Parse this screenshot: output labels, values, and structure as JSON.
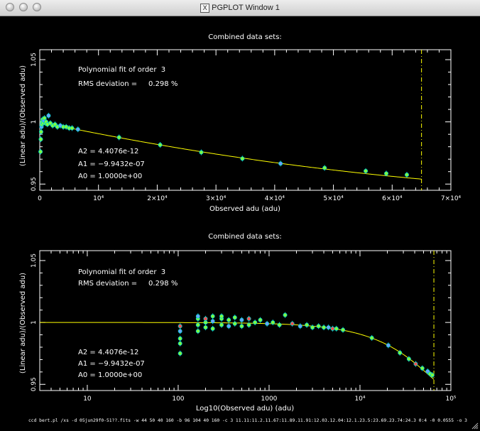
{
  "window": {
    "title": "PGPLOT Window 1",
    "title_icon": "X",
    "command_line": "ccd bert.pl /xs -d 05jun29f0-51??.fits -w 44 50 40 160 -b 96 104 40 160 -c 3 11.11:11.2.11.67:11.89.11.91:12.03.12.04:12.1.23.5:23.69.23.74:24.3 0:4 -0 0.0555 -o 3"
  },
  "colors": {
    "background": "#000000",
    "axes": "#ffffff",
    "fit_line": "#ffff00",
    "fill_points": "#7fff3f",
    "outline_points": "#00cccc",
    "blue_points": "#6f9fff",
    "red_points": "#ff5050",
    "limit_line": "#ffff00"
  },
  "chart_data": [
    {
      "type": "scatter",
      "title": "Combined data sets:",
      "xlabel": "Observed adu (adu)",
      "ylabel": "(Linear adu)/(Observed adu)",
      "xscale": "linear",
      "xlim": [
        0,
        70000
      ],
      "ylim": [
        0.945,
        1.058
      ],
      "x_ticks": [
        0,
        10000,
        20000,
        30000,
        40000,
        50000,
        60000,
        70000
      ],
      "x_tick_labels": [
        "0",
        "10⁴",
        "2×10⁴",
        "3×10⁴",
        "4×10⁴",
        "5×10⁴",
        "6×10⁴",
        "7×10⁴"
      ],
      "y_ticks": [
        0.95,
        1.0,
        1.05
      ],
      "y_tick_labels": [
        "0.95",
        "1",
        "1.05"
      ],
      "annotations": [
        "Polynomial fit of order  3",
        "RMS deviation =     0.298 %",
        "A2 = 4.4076e-12",
        "A1 = −9.9432e-07",
        "A0 = 1.0000e+00"
      ],
      "fit_coefficients": {
        "A0": 1.0,
        "A1": -9.9432e-07,
        "A2": 4.4076e-12
      },
      "limit_x": 65000,
      "points": [
        {
          "x": 130,
          "y": 0.976
        },
        {
          "x": 180,
          "y": 0.986
        },
        {
          "x": 230,
          "y": 0.992
        },
        {
          "x": 300,
          "y": 0.996
        },
        {
          "x": 360,
          "y": 0.998
        },
        {
          "x": 420,
          "y": 1.0
        },
        {
          "x": 500,
          "y": 1.002
        },
        {
          "x": 600,
          "y": 0.999
        },
        {
          "x": 700,
          "y": 1.001
        },
        {
          "x": 800,
          "y": 1.003
        },
        {
          "x": 950,
          "y": 0.999
        },
        {
          "x": 1100,
          "y": 1.0
        },
        {
          "x": 1300,
          "y": 0.998
        },
        {
          "x": 1500,
          "y": 1.005
        },
        {
          "x": 1800,
          "y": 0.999
        },
        {
          "x": 2200,
          "y": 0.997
        },
        {
          "x": 2600,
          "y": 0.998
        },
        {
          "x": 3000,
          "y": 0.996
        },
        {
          "x": 3500,
          "y": 0.997
        },
        {
          "x": 4000,
          "y": 0.996
        },
        {
          "x": 4500,
          "y": 0.996
        },
        {
          "x": 5000,
          "y": 0.995
        },
        {
          "x": 5500,
          "y": 0.995
        },
        {
          "x": 6500,
          "y": 0.994
        },
        {
          "x": 13500,
          "y": 0.9875
        },
        {
          "x": 20500,
          "y": 0.9815
        },
        {
          "x": 27500,
          "y": 0.9755
        },
        {
          "x": 34500,
          "y": 0.9705
        },
        {
          "x": 41000,
          "y": 0.9665
        },
        {
          "x": 48500,
          "y": 0.963
        },
        {
          "x": 55500,
          "y": 0.9605
        },
        {
          "x": 59000,
          "y": 0.9585
        },
        {
          "x": 62500,
          "y": 0.9575
        }
      ]
    },
    {
      "type": "scatter",
      "title": "Combined data sets:",
      "xlabel": "Log10(Observed adu) (adu)",
      "ylabel": "(Linear adu)/(Observed adu)",
      "xscale": "log",
      "xlim": [
        3,
        100000
      ],
      "ylim": [
        0.945,
        1.058
      ],
      "x_ticks": [
        10,
        100,
        1000,
        10000,
        100000
      ],
      "x_tick_labels": [
        "10",
        "100",
        "1000",
        "10⁴",
        "10⁵"
      ],
      "y_ticks": [
        0.95,
        1.0,
        1.05
      ],
      "y_tick_labels": [
        "0.95",
        "1",
        "1.05"
      ],
      "annotations": [
        "Polynomial fit of order  3",
        "RMS deviation =     0.298 %",
        "A2 = 4.4076e-12",
        "A1 = −9.9432e-07",
        "A0 = 1.0000e+00"
      ],
      "fit_coefficients": {
        "A0": 1.0,
        "A1": -9.9432e-07,
        "A2": 4.4076e-12
      },
      "limit_x": 65000,
      "points": [
        {
          "x": 105,
          "y": 0.975
        },
        {
          "x": 105,
          "y": 0.983
        },
        {
          "x": 105,
          "y": 0.987
        },
        {
          "x": 105,
          "y": 0.993
        },
        {
          "x": 105,
          "y": 0.997
        },
        {
          "x": 165,
          "y": 0.993
        },
        {
          "x": 165,
          "y": 0.998
        },
        {
          "x": 165,
          "y": 1.003
        },
        {
          "x": 165,
          "y": 1.005
        },
        {
          "x": 200,
          "y": 0.996
        },
        {
          "x": 200,
          "y": 1.0
        },
        {
          "x": 200,
          "y": 1.003
        },
        {
          "x": 240,
          "y": 0.995
        },
        {
          "x": 240,
          "y": 1.001
        },
        {
          "x": 240,
          "y": 1.005
        },
        {
          "x": 300,
          "y": 0.998
        },
        {
          "x": 300,
          "y": 1.003
        },
        {
          "x": 300,
          "y": 1.005
        },
        {
          "x": 360,
          "y": 0.997
        },
        {
          "x": 360,
          "y": 1.002
        },
        {
          "x": 420,
          "y": 0.999
        },
        {
          "x": 420,
          "y": 1.004
        },
        {
          "x": 500,
          "y": 0.997
        },
        {
          "x": 500,
          "y": 1.002
        },
        {
          "x": 600,
          "y": 0.998
        },
        {
          "x": 600,
          "y": 1.003
        },
        {
          "x": 700,
          "y": 1.0
        },
        {
          "x": 800,
          "y": 1.002
        },
        {
          "x": 950,
          "y": 0.999
        },
        {
          "x": 1100,
          "y": 1.0
        },
        {
          "x": 1300,
          "y": 0.998
        },
        {
          "x": 1500,
          "y": 1.006
        },
        {
          "x": 1800,
          "y": 0.999
        },
        {
          "x": 2200,
          "y": 0.997
        },
        {
          "x": 2600,
          "y": 0.998
        },
        {
          "x": 3000,
          "y": 0.996
        },
        {
          "x": 3500,
          "y": 0.997
        },
        {
          "x": 4000,
          "y": 0.996
        },
        {
          "x": 4500,
          "y": 0.996
        },
        {
          "x": 5000,
          "y": 0.995
        },
        {
          "x": 5500,
          "y": 0.995
        },
        {
          "x": 6500,
          "y": 0.994
        },
        {
          "x": 13500,
          "y": 0.9875
        },
        {
          "x": 20500,
          "y": 0.9815
        },
        {
          "x": 27500,
          "y": 0.9755
        },
        {
          "x": 34500,
          "y": 0.9705
        },
        {
          "x": 41000,
          "y": 0.9665
        },
        {
          "x": 48500,
          "y": 0.963
        },
        {
          "x": 55500,
          "y": 0.9605
        },
        {
          "x": 59000,
          "y": 0.9585
        },
        {
          "x": 62500,
          "y": 0.9575
        }
      ]
    }
  ]
}
